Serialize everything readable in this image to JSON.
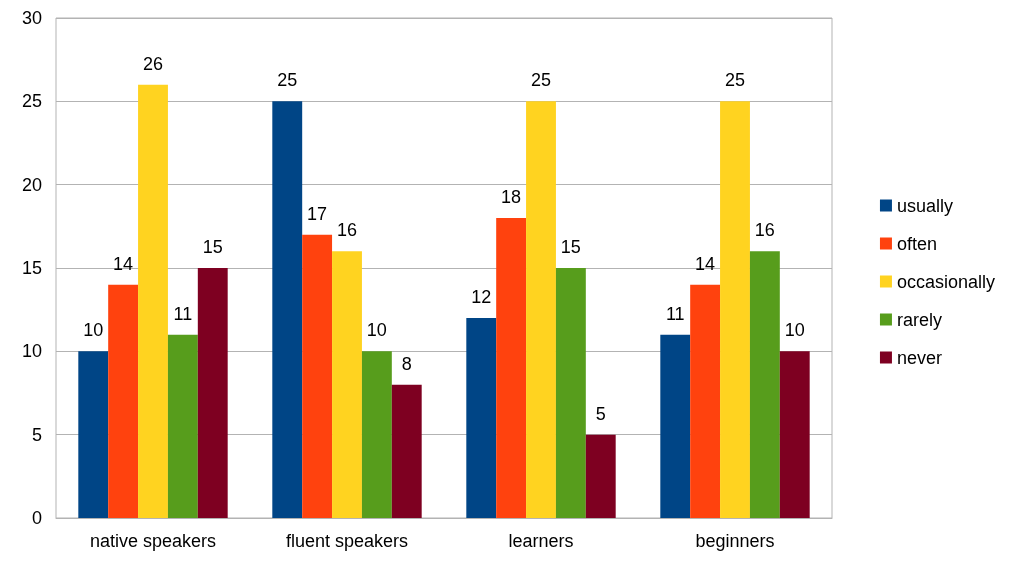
{
  "chart_data": {
    "type": "bar",
    "categories": [
      "native speakers",
      "fluent speakers",
      "learners",
      "beginners"
    ],
    "series": [
      {
        "name": "usually",
        "color": "#004586",
        "values": [
          10,
          25,
          12,
          11
        ]
      },
      {
        "name": "often",
        "color": "#ff420e",
        "values": [
          14,
          17,
          18,
          14
        ]
      },
      {
        "name": "occasionally",
        "color": "#ffd320",
        "values": [
          26,
          16,
          25,
          25
        ]
      },
      {
        "name": "rarely",
        "color": "#579d1c",
        "values": [
          11,
          10,
          15,
          16
        ]
      },
      {
        "name": "never",
        "color": "#7e0021",
        "values": [
          15,
          8,
          5,
          10
        ]
      }
    ],
    "ylim": [
      0,
      30
    ],
    "yticks": [
      0,
      5,
      10,
      15,
      20,
      25,
      30
    ],
    "grid": "y",
    "legend": "right",
    "data_labels": true
  }
}
